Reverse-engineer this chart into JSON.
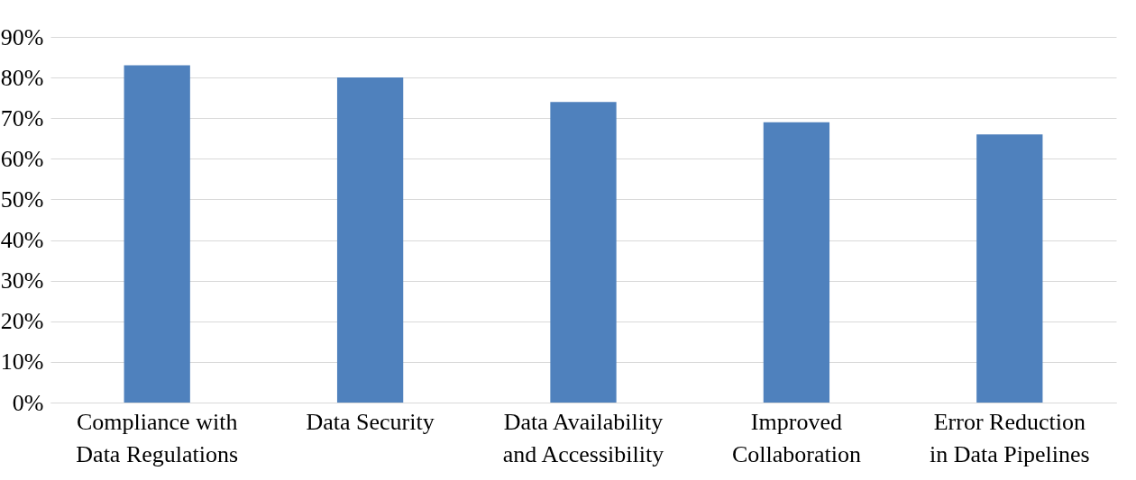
{
  "chart_data": {
    "type": "bar",
    "categories": [
      "Compliance with Data Regulations",
      "Data Security",
      "Data Availability and Accessibility",
      "Improved Collaboration",
      "Error Reduction in Data Pipelines"
    ],
    "values": [
      83,
      80,
      74,
      69,
      66
    ],
    "color": "#4f81bd",
    "ylim": [
      0,
      90
    ],
    "yticks": [
      {
        "value": 0,
        "label": "0%"
      },
      {
        "value": 10,
        "label": "10%"
      },
      {
        "value": 20,
        "label": "20%"
      },
      {
        "value": 30,
        "label": "30%"
      },
      {
        "value": 40,
        "label": "40%"
      },
      {
        "value": 50,
        "label": "50%"
      },
      {
        "value": 60,
        "label": "60%"
      },
      {
        "value": 70,
        "label": "70%"
      },
      {
        "value": 80,
        "label": "80%"
      },
      {
        "value": 90,
        "label": "90%"
      }
    ],
    "grid": true
  }
}
